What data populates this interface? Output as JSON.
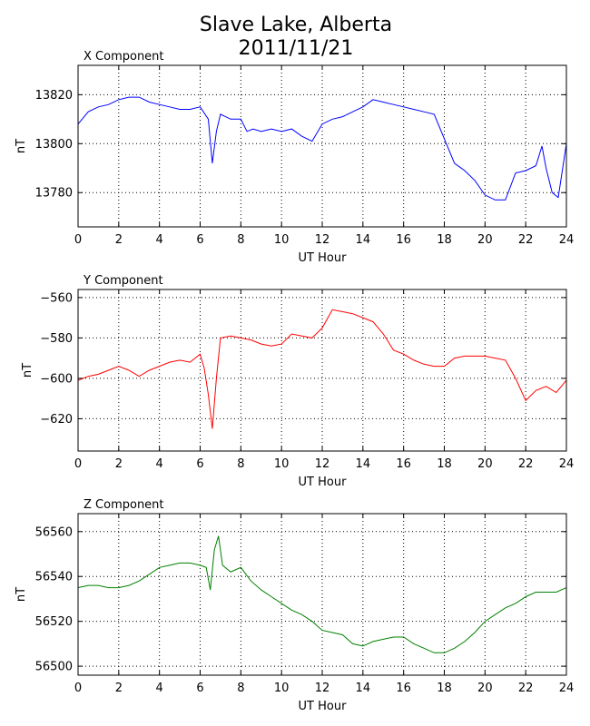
{
  "figure": {
    "title_line1": "Slave Lake, Alberta",
    "title_line2": "2011/11/21"
  },
  "chart_data": [
    {
      "type": "line",
      "title": "X Component",
      "xlabel": "UT Hour",
      "ylabel": "nT",
      "xlim": [
        0,
        24
      ],
      "ylim": [
        13766,
        13832
      ],
      "xticks": [
        0,
        2,
        4,
        6,
        8,
        10,
        12,
        14,
        16,
        18,
        20,
        22,
        24
      ],
      "yticks": [
        13780,
        13800,
        13820
      ],
      "grid": true,
      "color": "#0000ff",
      "x": [
        0,
        0.5,
        1,
        1.5,
        2,
        2.5,
        3,
        3.5,
        4,
        4.5,
        5,
        5.5,
        6,
        6.4,
        6.6,
        6.8,
        7,
        7.5,
        8,
        8.3,
        8.6,
        9,
        9.5,
        10,
        10.5,
        11,
        11.5,
        12,
        12.5,
        13,
        13.5,
        14,
        14.5,
        15,
        15.5,
        16,
        16.5,
        17,
        17.5,
        18,
        18.5,
        19,
        19.5,
        20,
        20.5,
        21,
        21.5,
        22,
        22.5,
        22.8,
        23,
        23.3,
        23.6,
        24
      ],
      "values": [
        13808,
        13813,
        13815,
        13816,
        13818,
        13819,
        13819,
        13817,
        13816,
        13815,
        13814,
        13814,
        13815,
        13810,
        13792,
        13805,
        13812,
        13810,
        13810,
        13805,
        13806,
        13805,
        13806,
        13805,
        13806,
        13803,
        13801,
        13808,
        13810,
        13811,
        13813,
        13815,
        13818,
        13817,
        13816,
        13815,
        13814,
        13813,
        13812,
        13802,
        13792,
        13789,
        13785,
        13779,
        13777,
        13777,
        13788,
        13789,
        13791,
        13799,
        13790,
        13780,
        13778,
        13800
      ]
    },
    {
      "type": "line",
      "title": "Y Component",
      "xlabel": "UT Hour",
      "ylabel": "nT",
      "xlim": [
        0,
        24
      ],
      "ylim": [
        -636,
        -556
      ],
      "xticks": [
        0,
        2,
        4,
        6,
        8,
        10,
        12,
        14,
        16,
        18,
        20,
        22,
        24
      ],
      "yticks": [
        -620,
        -600,
        -580,
        -560
      ],
      "grid": true,
      "color": "#ff0000",
      "x": [
        0,
        0.5,
        1,
        1.5,
        2,
        2.5,
        3,
        3.5,
        4,
        4.5,
        5,
        5.5,
        6,
        6.2,
        6.4,
        6.6,
        6.8,
        7,
        7.5,
        8,
        8.5,
        9,
        9.5,
        10,
        10.5,
        11,
        11.5,
        12,
        12.5,
        13,
        13.5,
        14,
        14.5,
        15,
        15.5,
        16,
        16.5,
        17,
        17.5,
        18,
        18.5,
        19,
        19.5,
        20,
        20.5,
        21,
        21.5,
        22,
        22.5,
        23,
        23.5,
        24
      ],
      "values": [
        -601,
        -599,
        -598,
        -596,
        -594,
        -596,
        -599,
        -596,
        -594,
        -592,
        -591,
        -592,
        -588,
        -595,
        -608,
        -625,
        -600,
        -580,
        -579,
        -580,
        -581,
        -583,
        -584,
        -583,
        -578,
        -579,
        -580,
        -575,
        -566,
        -567,
        -568,
        -570,
        -572,
        -578,
        -586,
        -588,
        -591,
        -593,
        -594,
        -594,
        -590,
        -589,
        -589,
        -589,
        -590,
        -591,
        -600,
        -611,
        -606,
        -604,
        -607,
        -601
      ]
    },
    {
      "type": "line",
      "title": "Z Component",
      "xlabel": "UT Hour",
      "ylabel": "nT",
      "xlim": [
        0,
        24
      ],
      "ylim": [
        56496,
        56568
      ],
      "xticks": [
        0,
        2,
        4,
        6,
        8,
        10,
        12,
        14,
        16,
        18,
        20,
        22,
        24
      ],
      "yticks": [
        56500,
        56520,
        56540,
        56560
      ],
      "grid": true,
      "color": "#008000",
      "x": [
        0,
        0.5,
        1,
        1.5,
        2,
        2.5,
        3,
        3.5,
        4,
        4.5,
        5,
        5.5,
        6,
        6.3,
        6.5,
        6.7,
        6.9,
        7.1,
        7.5,
        8,
        8.5,
        9,
        9.5,
        10,
        10.5,
        11,
        11.5,
        12,
        12.5,
        13,
        13.5,
        14,
        14.5,
        15,
        15.5,
        16,
        16.5,
        17,
        17.5,
        18,
        18.5,
        19,
        19.5,
        20,
        20.5,
        21,
        21.5,
        22,
        22.5,
        23,
        23.5,
        24
      ],
      "values": [
        56535,
        56536,
        56536,
        56535,
        56535,
        56536,
        56538,
        56541,
        56544,
        56545,
        56546,
        56546,
        56545,
        56544,
        56534,
        56552,
        56558,
        56545,
        56542,
        56544,
        56538,
        56534,
        56531,
        56528,
        56525,
        56523,
        56520,
        56516,
        56515,
        56514,
        56510,
        56509,
        56511,
        56512,
        56513,
        56513,
        56510,
        56508,
        56506,
        56506,
        56508,
        56511,
        56515,
        56520,
        56523,
        56526,
        56528,
        56531,
        56533,
        56533,
        56533,
        56535
      ]
    }
  ]
}
